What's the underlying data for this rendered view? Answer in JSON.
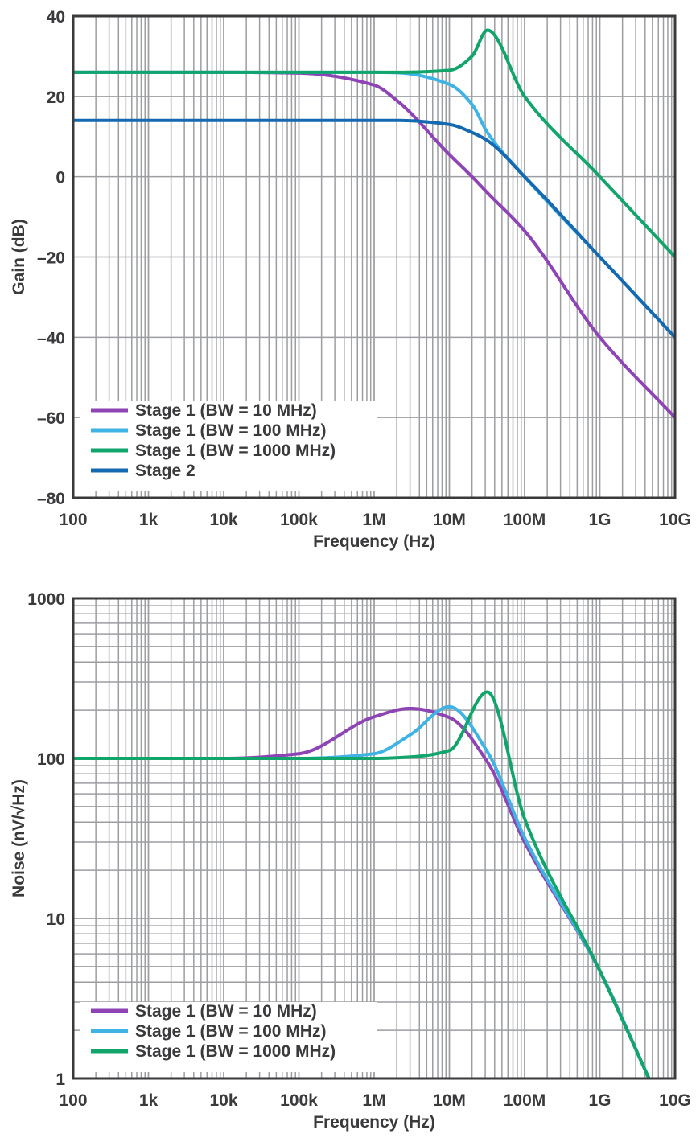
{
  "chart_data": [
    {
      "type": "line",
      "xlabel": "Frequency (Hz)",
      "ylabel": "Gain (dB)",
      "xscale": "log",
      "xlim": [
        100,
        10000000000
      ],
      "ylim": [
        -80,
        40
      ],
      "x_ticks": [
        "100",
        "1k",
        "10k",
        "100k",
        "1M",
        "10M",
        "100M",
        "1G",
        "10G"
      ],
      "y_ticks": [
        "40",
        "20",
        "0",
        "–20",
        "–40",
        "–60",
        "–80"
      ],
      "grid": true,
      "legend_position": "bottom-left",
      "x": [
        100,
        1000,
        10000,
        100000,
        1000000,
        2000000,
        10000000,
        20000000,
        32000000,
        100000000,
        1000000000,
        10000000000
      ],
      "series": [
        {
          "name": "Stage 1 (BW = 10 MHz)",
          "color": "#8e44b4",
          "values": [
            26,
            26,
            26,
            25.8,
            22.8,
            19,
            5.5,
            0,
            -4,
            -13.5,
            -40,
            -60
          ]
        },
        {
          "name": "Stage 1 (BW = 100 MHz)",
          "color": "#3fb3e3",
          "values": [
            26,
            26,
            26,
            26,
            26,
            25.9,
            23,
            18,
            11,
            0,
            -20,
            -40
          ]
        },
        {
          "name": "Stage 1 (BW = 1000 MHz)",
          "color": "#11a56c",
          "values": [
            26,
            26,
            26,
            26,
            26,
            26,
            26.5,
            30,
            36.5,
            20,
            0,
            -20
          ]
        },
        {
          "name": "Stage 2",
          "color": "#1569b0",
          "values": [
            14,
            14,
            14,
            14,
            14,
            14,
            13,
            11,
            9,
            0,
            -20,
            -40
          ]
        }
      ]
    },
    {
      "type": "line",
      "xlabel": "Frequency (Hz)",
      "ylabel": "Noise (nV/√Hz)",
      "xscale": "log",
      "yscale": "log",
      "xlim": [
        100,
        10000000000
      ],
      "ylim": [
        1,
        1000
      ],
      "x_ticks": [
        "100",
        "1k",
        "10k",
        "100k",
        "1M",
        "10M",
        "100M",
        "1G",
        "10G"
      ],
      "y_ticks": [
        "1000",
        "100",
        "10",
        "1"
      ],
      "grid": true,
      "legend_position": "bottom-left",
      "x": [
        100,
        1000,
        10000,
        100000,
        1000000,
        3000000,
        10000000,
        32000000,
        100000000,
        1000000000,
        4500000000
      ],
      "series": [
        {
          "name": "Stage 1 (BW = 10 MHz)",
          "color": "#8e44b4",
          "values": [
            100,
            100,
            100,
            107,
            182,
            205,
            180,
            95,
            30,
            4.7,
            1
          ]
        },
        {
          "name": "Stage 1 (BW = 100 MHz)",
          "color": "#3fb3e3",
          "values": [
            100,
            100,
            100,
            100,
            107,
            140,
            210,
            110,
            32,
            4.7,
            1
          ]
        },
        {
          "name": "Stage 1 (BW = 1000 MHz)",
          "color": "#11a56c",
          "values": [
            100,
            100,
            100,
            100,
            100,
            102,
            112,
            260,
            42,
            4.7,
            1
          ]
        }
      ]
    }
  ]
}
